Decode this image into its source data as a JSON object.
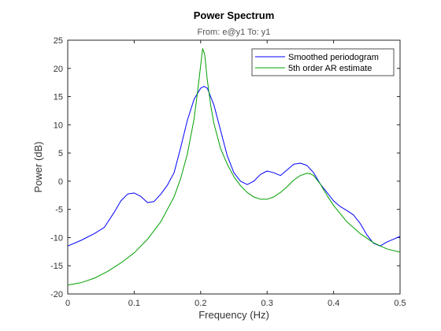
{
  "chart_data": {
    "type": "line",
    "title": "Power Spectrum",
    "subtitle": "From: e@y1  To: y1",
    "xlabel": "Frequency  (Hz)",
    "ylabel": "Power  (dB)",
    "xlim": [
      0,
      0.5
    ],
    "ylim": [
      -20,
      25
    ],
    "xticks": [
      0,
      0.1,
      0.2,
      0.3,
      0.4,
      0.5
    ],
    "xtick_labels": [
      "0",
      "0.1",
      "0.2",
      "0.3",
      "0.4",
      "0.5"
    ],
    "yticks": [
      -20,
      -15,
      -10,
      -5,
      0,
      5,
      10,
      15,
      20,
      25
    ],
    "ytick_labels": [
      "-20",
      "-15",
      "-10",
      "-5",
      "0",
      "5",
      "10",
      "15",
      "20",
      "25"
    ],
    "grid": false,
    "legend_position": "top-right",
    "series": [
      {
        "name": "Smoothed periodogram",
        "color": "#0000ff",
        "x": [
          0,
          0.02,
          0.04,
          0.055,
          0.07,
          0.08,
          0.09,
          0.1,
          0.11,
          0.12,
          0.13,
          0.14,
          0.15,
          0.16,
          0.17,
          0.18,
          0.19,
          0.2,
          0.205,
          0.21,
          0.22,
          0.23,
          0.24,
          0.25,
          0.26,
          0.27,
          0.28,
          0.29,
          0.3,
          0.31,
          0.32,
          0.33,
          0.34,
          0.35,
          0.36,
          0.37,
          0.38,
          0.39,
          0.4,
          0.41,
          0.42,
          0.43,
          0.44,
          0.45,
          0.46,
          0.47,
          0.48,
          0.49,
          0.5
        ],
        "y": [
          -11.5,
          -10.5,
          -9.3,
          -8.2,
          -5.5,
          -3.5,
          -2.3,
          -2.1,
          -2.7,
          -3.8,
          -3.6,
          -2.3,
          -0.7,
          1.5,
          6.0,
          10.8,
          14.5,
          16.5,
          16.8,
          16.5,
          13.5,
          9.0,
          4.5,
          1.5,
          0.0,
          -0.6,
          0.0,
          1.2,
          1.8,
          1.5,
          1.0,
          2.0,
          3.0,
          3.2,
          2.8,
          1.5,
          -0.5,
          -2.0,
          -3.5,
          -4.5,
          -5.2,
          -6.0,
          -7.5,
          -9.5,
          -11.0,
          -11.5,
          -10.8,
          -10.3,
          -9.8
        ]
      },
      {
        "name": "5th order AR estimate",
        "color": "#00a000",
        "x": [
          0,
          0.02,
          0.04,
          0.06,
          0.08,
          0.1,
          0.12,
          0.14,
          0.16,
          0.17,
          0.18,
          0.19,
          0.195,
          0.2,
          0.203,
          0.206,
          0.21,
          0.215,
          0.22,
          0.23,
          0.24,
          0.25,
          0.26,
          0.27,
          0.28,
          0.29,
          0.3,
          0.31,
          0.32,
          0.33,
          0.34,
          0.35,
          0.36,
          0.365,
          0.37,
          0.38,
          0.39,
          0.4,
          0.42,
          0.44,
          0.46,
          0.48,
          0.5
        ],
        "y": [
          -18.4,
          -18.0,
          -17.2,
          -16.0,
          -14.5,
          -12.7,
          -10.3,
          -7.2,
          -2.8,
          0.5,
          4.8,
          11.0,
          15.5,
          20.5,
          23.5,
          22.5,
          18.0,
          13.5,
          10.2,
          5.8,
          3.0,
          0.8,
          -0.8,
          -2.0,
          -2.8,
          -3.2,
          -3.2,
          -2.8,
          -2.0,
          -1.0,
          0.2,
          1.0,
          1.4,
          1.3,
          1.0,
          -0.5,
          -2.5,
          -4.3,
          -7.2,
          -9.3,
          -10.9,
          -12.0,
          -12.6
        ]
      }
    ]
  }
}
